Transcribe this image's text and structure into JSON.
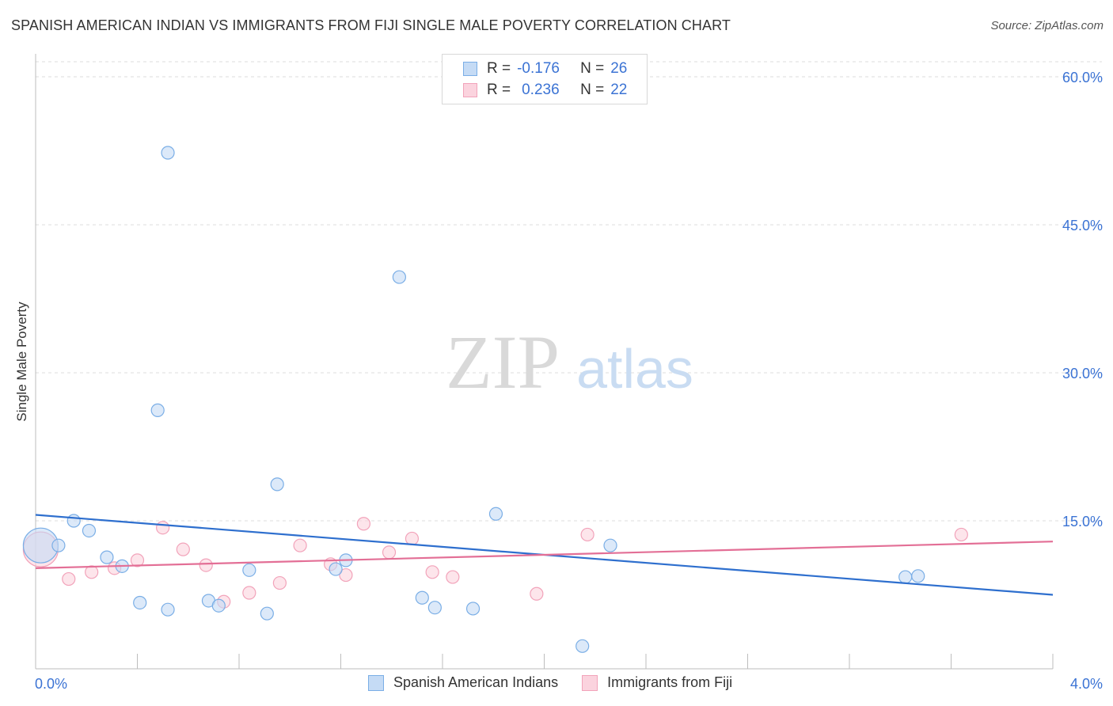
{
  "title": "SPANISH AMERICAN INDIAN VS IMMIGRANTS FROM FIJI SINGLE MALE POVERTY CORRELATION CHART",
  "source": "Source: ZipAtlas.com",
  "watermark": {
    "zip": "ZIP",
    "atlas": "atlas"
  },
  "legend": {
    "r_label": "R =",
    "n_label": "N =",
    "series1": {
      "r": "-0.176",
      "n": "26"
    },
    "series2": {
      "r": "0.236",
      "n": "22"
    }
  },
  "chart_data": {
    "type": "scatter",
    "title": "SPANISH AMERICAN INDIAN VS IMMIGRANTS FROM FIJI SINGLE MALE POVERTY CORRELATION CHART",
    "xlabel": "",
    "ylabel": "Single Male Poverty",
    "xlim": [
      0,
      4
    ],
    "ylim": [
      0,
      60
    ],
    "x_tick_labels": [
      {
        "value": 0,
        "label": "0.0%"
      },
      {
        "value": 4,
        "label": "4.0%"
      }
    ],
    "y_tick_labels": [
      {
        "value": 15,
        "label": "15.0%"
      },
      {
        "value": 30,
        "label": "30.0%"
      },
      {
        "value": 45,
        "label": "45.0%"
      },
      {
        "value": 60,
        "label": "60.0%"
      }
    ],
    "grid": true,
    "series": [
      {
        "name": "Spanish American Indians",
        "color": "#7aaee6",
        "fill": "#c5dbf5",
        "line_color": "#2e6fce",
        "trend": {
          "x": [
            0,
            4
          ],
          "y": [
            15.6,
            7.5
          ]
        },
        "points": [
          [
            0.02,
            12.5,
            "large"
          ],
          [
            0.09,
            12.5
          ],
          [
            0.15,
            15.0
          ],
          [
            0.21,
            14.0
          ],
          [
            0.28,
            11.3
          ],
          [
            0.34,
            10.4
          ],
          [
            0.41,
            6.7
          ],
          [
            0.48,
            26.2
          ],
          [
            0.52,
            6.0
          ],
          [
            0.52,
            52.3
          ],
          [
            0.68,
            6.9
          ],
          [
            0.72,
            6.4
          ],
          [
            0.84,
            10.0
          ],
          [
            0.91,
            5.6
          ],
          [
            0.95,
            18.7
          ],
          [
            1.18,
            10.1
          ],
          [
            1.22,
            11.0
          ],
          [
            1.43,
            39.7
          ],
          [
            1.52,
            7.2
          ],
          [
            1.57,
            6.2
          ],
          [
            1.72,
            6.1
          ],
          [
            1.81,
            15.7
          ],
          [
            2.15,
            2.3
          ],
          [
            2.26,
            12.5
          ],
          [
            3.42,
            9.3
          ],
          [
            3.47,
            9.4
          ]
        ]
      },
      {
        "name": "Immigrants from Fiji",
        "color": "#f2a3ba",
        "fill": "#fbd3de",
        "line_color": "#e36f96",
        "trend": {
          "x": [
            0,
            4
          ],
          "y": [
            10.2,
            12.9
          ]
        },
        "points": [
          [
            0.02,
            12.1,
            "large"
          ],
          [
            0.13,
            9.1
          ],
          [
            0.22,
            9.8
          ],
          [
            0.31,
            10.2
          ],
          [
            0.4,
            11.0
          ],
          [
            0.5,
            14.3
          ],
          [
            0.58,
            12.1
          ],
          [
            0.67,
            10.5
          ],
          [
            0.74,
            6.8
          ],
          [
            0.84,
            7.7
          ],
          [
            0.96,
            8.7
          ],
          [
            1.04,
            12.5
          ],
          [
            1.16,
            10.6
          ],
          [
            1.22,
            9.5
          ],
          [
            1.29,
            14.7
          ],
          [
            1.39,
            11.8
          ],
          [
            1.48,
            13.2
          ],
          [
            1.56,
            9.8
          ],
          [
            1.64,
            9.3
          ],
          [
            1.97,
            7.6
          ],
          [
            2.17,
            13.6
          ],
          [
            3.64,
            13.6
          ]
        ]
      }
    ]
  }
}
